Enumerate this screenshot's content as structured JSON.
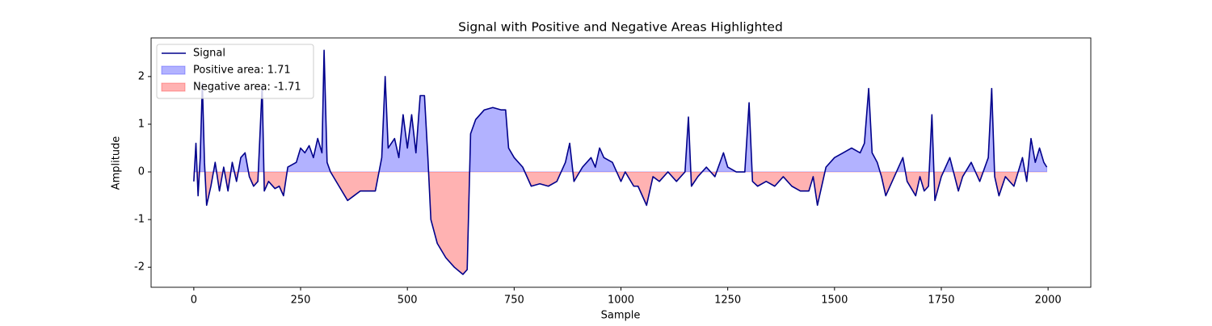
{
  "chart_data": {
    "type": "line",
    "title": "Signal with Positive and Negative Areas Highlighted",
    "x_label": "Sample",
    "y_label": "Amplitude",
    "x": [
      0,
      5,
      10,
      15,
      20,
      25,
      30,
      40,
      50,
      60,
      70,
      80,
      90,
      100,
      110,
      120,
      130,
      140,
      150,
      160,
      165,
      175,
      190,
      200,
      210,
      220,
      240,
      250,
      260,
      270,
      280,
      290,
      300,
      305,
      312,
      320,
      340,
      360,
      375,
      390,
      410,
      425,
      440,
      448,
      455,
      470,
      480,
      490,
      500,
      510,
      520,
      530,
      540,
      548,
      555,
      570,
      590,
      610,
      630,
      640,
      648,
      660,
      680,
      700,
      720,
      730,
      737,
      750,
      770,
      790,
      810,
      830,
      850,
      870,
      880,
      890,
      910,
      930,
      940,
      950,
      960,
      980,
      1000,
      1010,
      1030,
      1040,
      1060,
      1075,
      1090,
      1110,
      1130,
      1150,
      1158,
      1165,
      1180,
      1200,
      1220,
      1240,
      1250,
      1270,
      1290,
      1300,
      1308,
      1320,
      1340,
      1360,
      1380,
      1400,
      1420,
      1440,
      1450,
      1460,
      1480,
      1500,
      1520,
      1540,
      1560,
      1570,
      1580,
      1588,
      1600,
      1610,
      1620,
      1640,
      1660,
      1670,
      1690,
      1700,
      1710,
      1720,
      1728,
      1735,
      1750,
      1770,
      1790,
      1800,
      1820,
      1840,
      1860,
      1868,
      1875,
      1885,
      1900,
      1920,
      1940,
      1950,
      1960,
      1970,
      1980,
      1990,
      1997
    ],
    "series": [
      {
        "name": "Signal",
        "color": "#00008b",
        "values": [
          -0.2,
          0.6,
          -0.5,
          0.3,
          1.85,
          0.2,
          -0.7,
          -0.3,
          0.2,
          -0.4,
          0.1,
          -0.4,
          0.2,
          -0.2,
          0.3,
          0.4,
          -0.1,
          -0.3,
          -0.2,
          1.8,
          -0.4,
          -0.2,
          -0.35,
          -0.3,
          -0.5,
          0.1,
          0.2,
          0.5,
          0.4,
          0.55,
          0.3,
          0.7,
          0.4,
          2.55,
          0.2,
          0.0,
          -0.3,
          -0.6,
          -0.5,
          -0.4,
          -0.4,
          -0.4,
          0.3,
          2.0,
          0.5,
          0.7,
          0.3,
          1.2,
          0.5,
          1.2,
          0.4,
          1.6,
          1.6,
          0.3,
          -1.0,
          -1.5,
          -1.8,
          -2.0,
          -2.15,
          -2.05,
          0.8,
          1.1,
          1.3,
          1.35,
          1.3,
          1.3,
          0.5,
          0.3,
          0.1,
          -0.3,
          -0.25,
          -0.3,
          -0.2,
          0.2,
          0.6,
          -0.2,
          0.1,
          0.3,
          0.1,
          0.5,
          0.3,
          0.2,
          -0.2,
          0.0,
          -0.3,
          -0.3,
          -0.7,
          -0.1,
          -0.2,
          0.0,
          -0.2,
          0.0,
          1.15,
          -0.3,
          -0.1,
          0.1,
          -0.1,
          0.4,
          0.1,
          0.0,
          0.0,
          1.45,
          -0.2,
          -0.3,
          -0.2,
          -0.3,
          -0.1,
          -0.3,
          -0.4,
          -0.4,
          -0.1,
          -0.7,
          0.1,
          0.3,
          0.4,
          0.5,
          0.4,
          0.6,
          1.75,
          0.4,
          0.2,
          -0.1,
          -0.5,
          -0.1,
          0.3,
          -0.2,
          -0.5,
          -0.1,
          -0.4,
          -0.3,
          1.2,
          -0.6,
          -0.1,
          0.3,
          -0.4,
          -0.1,
          0.2,
          -0.2,
          0.3,
          1.75,
          -0.1,
          -0.5,
          -0.1,
          -0.3,
          0.3,
          -0.2,
          0.7,
          0.2,
          0.5,
          0.2,
          0.1
        ]
      }
    ],
    "fill_between": [
      {
        "name": "Positive area: 1.71",
        "color": "blue",
        "alpha": 0.3,
        "where": "above"
      },
      {
        "name": "Negative area: -1.71",
        "color": "red",
        "alpha": 0.3,
        "where": "below"
      }
    ],
    "xlim": [
      -100,
      2100
    ],
    "xticks": [
      0,
      250,
      500,
      750,
      1000,
      1250,
      1500,
      1750,
      2000
    ],
    "ylim": [
      -2.42,
      2.81
    ],
    "yticks": [
      -2,
      -1,
      0,
      1,
      2
    ],
    "grid": false,
    "legend": "upper left"
  }
}
